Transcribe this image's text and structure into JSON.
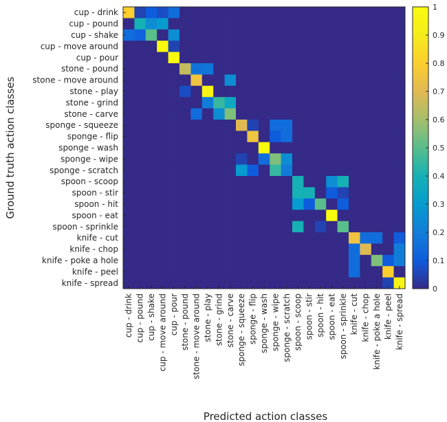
{
  "chart_data": {
    "type": "heatmap",
    "title": "",
    "xlabel": "Predicted action classes",
    "ylabel": "Ground truth action classes",
    "categories": [
      "cup - drink",
      "cup - pound",
      "cup - shake",
      "cup - move around",
      "cup - pour",
      "stone - pound",
      "stone - move around",
      "stone - play",
      "stone - grind",
      "stone - carve",
      "sponge - squeeze",
      "sponge - flip",
      "sponge - wash",
      "sponge - wipe",
      "sponge - scratch",
      "spoon - scoop",
      "spoon - stir",
      "spoon - hit",
      "spoon - eat",
      "spoon - sprinkle",
      "knife - cut",
      "knife - chop",
      "knife - poke a hole",
      "knife - peel",
      "knife - spread"
    ],
    "matrix": [
      [
        0.8,
        0.05,
        0.1,
        0.07,
        0.15,
        0,
        0,
        0,
        0,
        0,
        0,
        0,
        0,
        0,
        0,
        0,
        0,
        0,
        0,
        0,
        0,
        0,
        0,
        0,
        0
      ],
      [
        0,
        0.4,
        0.25,
        0.3,
        0,
        0,
        0,
        0,
        0,
        0,
        0,
        0,
        0,
        0,
        0,
        0,
        0,
        0,
        0,
        0,
        0,
        0,
        0,
        0,
        0
      ],
      [
        0.15,
        0.12,
        0.5,
        0,
        0.25,
        0,
        0,
        0,
        0,
        0,
        0,
        0,
        0,
        0,
        0,
        0,
        0,
        0,
        0,
        0,
        0,
        0,
        0,
        0,
        0
      ],
      [
        0,
        0,
        0,
        1,
        0.05,
        0,
        0,
        0,
        0,
        0,
        0,
        0,
        0,
        0,
        0,
        0,
        0,
        0,
        0,
        0,
        0,
        0,
        0,
        0,
        0
      ],
      [
        0,
        0,
        0,
        0,
        1,
        0,
        0,
        0,
        0,
        0,
        0,
        0,
        0,
        0,
        0,
        0,
        0,
        0,
        0,
        0,
        0,
        0,
        0,
        0,
        0
      ],
      [
        0,
        0,
        0,
        0,
        0,
        0.65,
        0.17,
        0.18,
        0,
        0,
        0,
        0,
        0,
        0,
        0,
        0,
        0,
        0,
        0,
        0,
        0,
        0,
        0,
        0,
        0
      ],
      [
        0,
        0,
        0,
        0,
        0,
        0,
        0.75,
        0,
        0,
        0.25,
        0,
        0,
        0,
        0,
        0,
        0,
        0,
        0,
        0,
        0,
        0,
        0,
        0,
        0,
        0
      ],
      [
        0,
        0,
        0,
        0,
        0,
        0.07,
        0,
        0.95,
        0,
        0,
        0,
        0,
        0,
        0,
        0,
        0,
        0,
        0,
        0,
        0,
        0,
        0,
        0,
        0,
        0
      ],
      [
        0,
        0,
        0,
        0,
        0,
        0,
        0,
        0.2,
        0.45,
        0.35,
        0,
        0,
        0,
        0,
        0,
        0,
        0,
        0,
        0,
        0,
        0,
        0,
        0,
        0,
        0
      ],
      [
        0,
        0,
        0,
        0,
        0,
        0,
        0.15,
        0,
        0.25,
        0.55,
        0,
        0,
        0,
        0,
        0,
        0,
        0,
        0,
        0,
        0,
        0,
        0,
        0,
        0,
        0
      ],
      [
        0,
        0,
        0,
        0,
        0,
        0,
        0,
        0,
        0,
        0,
        0.7,
        0.05,
        0,
        0.15,
        0.15,
        0,
        0,
        0,
        0,
        0,
        0,
        0,
        0,
        0,
        0
      ],
      [
        0,
        0,
        0,
        0,
        0,
        0,
        0,
        0,
        0,
        0,
        0,
        0.75,
        0,
        0.1,
        0.15,
        0,
        0,
        0,
        0,
        0,
        0,
        0,
        0,
        0,
        0
      ],
      [
        0,
        0,
        0,
        0,
        0,
        0,
        0,
        0,
        0,
        0,
        0,
        0,
        1,
        0,
        0,
        0,
        0,
        0,
        0,
        0,
        0,
        0,
        0,
        0,
        0
      ],
      [
        0,
        0,
        0,
        0,
        0,
        0,
        0,
        0,
        0,
        0,
        0.05,
        0,
        0.15,
        0.55,
        0.25,
        0,
        0,
        0,
        0,
        0,
        0,
        0,
        0,
        0,
        0
      ],
      [
        0,
        0,
        0,
        0,
        0,
        0,
        0,
        0,
        0,
        0,
        0.3,
        0.1,
        0,
        0.45,
        0.2,
        0,
        0,
        0,
        0,
        0,
        0,
        0,
        0,
        0,
        0
      ],
      [
        0,
        0,
        0,
        0,
        0,
        0,
        0,
        0,
        0,
        0,
        0,
        0,
        0,
        0,
        0,
        0.4,
        0,
        0,
        0.25,
        0.4,
        0,
        0,
        0,
        0,
        0
      ],
      [
        0,
        0,
        0,
        0,
        0,
        0,
        0,
        0,
        0,
        0,
        0,
        0,
        0,
        0,
        0,
        0.4,
        0.4,
        0,
        0.1,
        0.05,
        0,
        0,
        0,
        0,
        0
      ],
      [
        0,
        0,
        0,
        0,
        0,
        0,
        0,
        0,
        0,
        0,
        0,
        0,
        0,
        0,
        0,
        0.3,
        0.1,
        0.5,
        0,
        0.1,
        0,
        0,
        0,
        0,
        0
      ],
      [
        0,
        0,
        0,
        0,
        0,
        0,
        0,
        0,
        0,
        0,
        0,
        0,
        0,
        0,
        0,
        0,
        0,
        0,
        1,
        0,
        0,
        0,
        0,
        0,
        0
      ],
      [
        0,
        0,
        0,
        0,
        0,
        0,
        0,
        0,
        0,
        0,
        0,
        0,
        0,
        0,
        0,
        0.4,
        0,
        0.05,
        0,
        0.5,
        0,
        0,
        0,
        0,
        0
      ],
      [
        0,
        0,
        0,
        0,
        0,
        0,
        0,
        0,
        0,
        0,
        0,
        0,
        0,
        0,
        0,
        0,
        0,
        0,
        0,
        0,
        0.75,
        0.15,
        0.15,
        0,
        0.1
      ],
      [
        0,
        0,
        0,
        0,
        0,
        0,
        0,
        0,
        0,
        0,
        0,
        0,
        0,
        0,
        0,
        0,
        0,
        0,
        0,
        0,
        0.15,
        0.7,
        0,
        0,
        0.2
      ],
      [
        0,
        0,
        0,
        0,
        0,
        0,
        0,
        0,
        0,
        0,
        0,
        0,
        0,
        0,
        0,
        0,
        0,
        0,
        0,
        0,
        0.15,
        0,
        0.55,
        0.1,
        0.2
      ],
      [
        0,
        0,
        0,
        0,
        0,
        0,
        0,
        0,
        0,
        0,
        0,
        0,
        0,
        0,
        0,
        0,
        0,
        0,
        0,
        0,
        0.15,
        0,
        0,
        0.8,
        0
      ],
      [
        0,
        0,
        0,
        0,
        0,
        0,
        0,
        0,
        0,
        0,
        0,
        0,
        0,
        0,
        0,
        0,
        0,
        0,
        0,
        0,
        0,
        0,
        0,
        0.05,
        0.95
      ]
    ],
    "colorbar": {
      "range": [
        0,
        1
      ],
      "ticks": [
        0,
        0.1,
        0.2,
        0.3,
        0.4,
        0.5,
        0.6,
        0.7,
        0.8,
        0.9,
        1
      ],
      "tick_labels": [
        "0",
        "0.1",
        "0.2",
        "0.3",
        "0.4",
        "0.5",
        "0.6",
        "0.7",
        "0.8",
        "0.9",
        "1"
      ],
      "colormap": "parula"
    }
  }
}
